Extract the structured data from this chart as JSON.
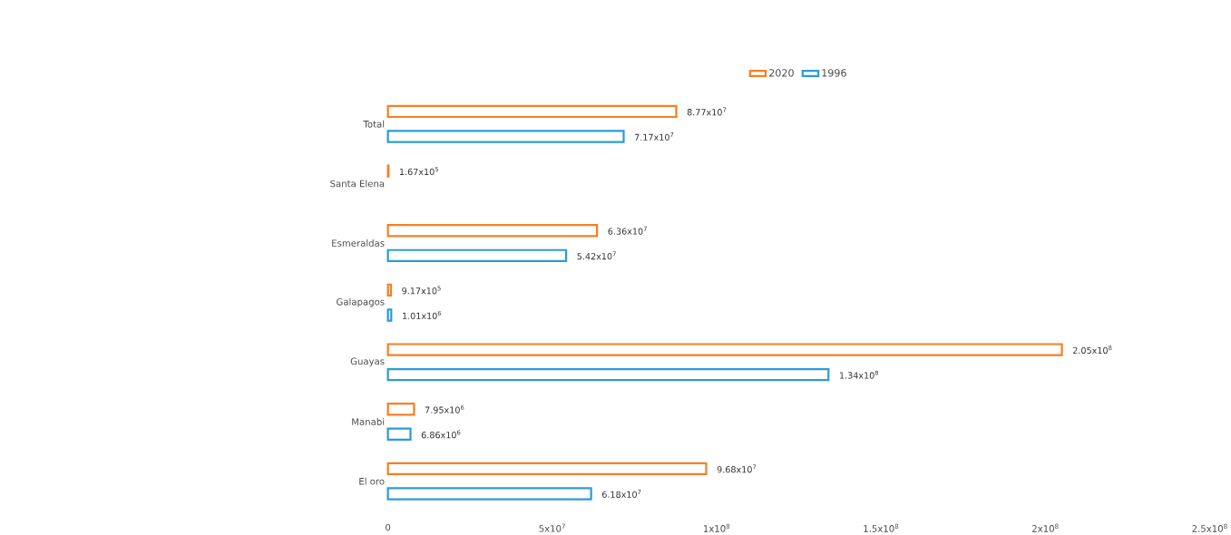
{
  "chart_data": {
    "type": "bar",
    "orientation": "horizontal",
    "legend": "top",
    "categories": [
      "Total",
      "Santa Elena",
      "Esmeraldas",
      "Galapagos",
      "Guayas",
      "Manabi",
      "El oro"
    ],
    "series": [
      {
        "name": "2020",
        "color": "#f58025",
        "values": [
          87700000,
          167000,
          63600000,
          917000,
          205000000,
          7950000,
          96800000
        ],
        "value_labels": [
          "8.77x10$^{7}$",
          "1.67x10$^{5}$",
          "6.36x10$^{7}$",
          "9.17x10$^{5}$",
          "2.05x10$^{8}$",
          "7.95x10$^{6}$",
          "9.68x10$^{7}$"
        ]
      },
      {
        "name": "1996",
        "color": "#2e9bd6",
        "values": [
          71700000,
          null,
          54200000,
          1010000,
          134000000,
          6860000,
          61800000
        ],
        "value_labels": [
          "7.17x10$^{7}$",
          null,
          "5.42x10$^{7}$",
          "1.01x10$^{6}$",
          "1.34x10$^{8}$",
          "6.86x10$^{6}$",
          "6.18x10$^{7}$"
        ]
      }
    ],
    "xlim": [
      0,
      250000000
    ],
    "xticks": [
      {
        "value": 0,
        "label": "0"
      },
      {
        "value": 50000000,
        "label": "5x10$^{7}$"
      },
      {
        "value": 100000000,
        "label": "1x10$^{8}$"
      },
      {
        "value": 150000000,
        "label": "1.5x10$^{8}$"
      },
      {
        "value": 200000000,
        "label": "2x10$^{8}$"
      },
      {
        "value": 250000000,
        "label": "2.5x10$^{8}$"
      }
    ]
  }
}
